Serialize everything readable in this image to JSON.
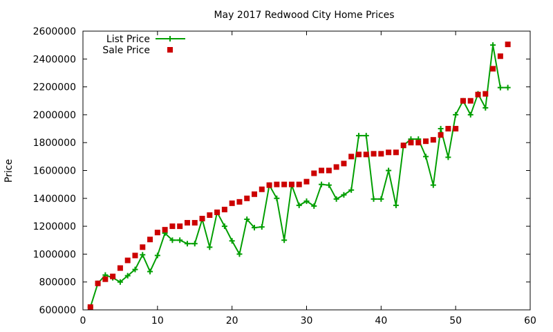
{
  "chart_data": {
    "type": "line",
    "title": "May 2017 Redwood City Home Prices",
    "xlabel": "",
    "ylabel": "Price",
    "xlim": [
      0,
      60
    ],
    "ylim": [
      600000,
      2600000
    ],
    "xticks": [
      "0",
      "10",
      "20",
      "30",
      "40",
      "50",
      "60"
    ],
    "yticks": [
      "600000",
      "800000",
      "1000000",
      "1200000",
      "1400000",
      "1600000",
      "1800000",
      "2000000",
      "2200000",
      "2400000",
      "2600000"
    ],
    "grid": false,
    "legend_position": "top-left",
    "series": [
      {
        "name": "List Price",
        "style": "line-points",
        "color": "#009e00",
        "x": [
          1,
          2,
          3,
          4,
          5,
          6,
          7,
          8,
          9,
          10,
          11,
          12,
          13,
          14,
          15,
          16,
          17,
          18,
          19,
          20,
          21,
          22,
          23,
          24,
          25,
          26,
          27,
          28,
          29,
          30,
          31,
          32,
          33,
          34,
          35,
          36,
          37,
          38,
          39,
          40,
          41,
          42,
          43,
          44,
          45,
          46,
          47,
          48,
          49,
          50,
          51,
          52,
          53,
          54,
          55,
          56,
          57
        ],
        "y": [
          620000,
          790000,
          850000,
          830000,
          800000,
          845000,
          890000,
          995000,
          875000,
          990000,
          1150000,
          1100000,
          1100000,
          1075000,
          1075000,
          1250000,
          1050000,
          1300000,
          1200000,
          1095000,
          1000000,
          1250000,
          1190000,
          1195000,
          1495000,
          1400000,
          1100000,
          1495000,
          1350000,
          1380000,
          1345000,
          1500000,
          1495000,
          1395000,
          1425000,
          1460000,
          1850000,
          1850000,
          1395000,
          1395000,
          1600000,
          1350000,
          1780000,
          1825000,
          1825000,
          1700000,
          1495000,
          1900000,
          1695000,
          2000000,
          2100000,
          2000000,
          2150000,
          2050000,
          2500000,
          2195000,
          2195000
        ]
      },
      {
        "name": "Sale Price",
        "style": "points",
        "color": "#cc0000",
        "x": [
          1,
          2,
          3,
          4,
          5,
          6,
          7,
          8,
          9,
          10,
          11,
          12,
          13,
          14,
          15,
          16,
          17,
          18,
          19,
          20,
          21,
          22,
          23,
          24,
          25,
          26,
          27,
          28,
          29,
          30,
          31,
          32,
          33,
          34,
          35,
          36,
          37,
          38,
          39,
          40,
          41,
          42,
          43,
          44,
          45,
          46,
          47,
          48,
          49,
          50,
          51,
          52,
          53,
          54,
          55,
          56,
          57
        ],
        "y": [
          620000,
          790000,
          820000,
          840000,
          900000,
          955000,
          990000,
          1050000,
          1105000,
          1155000,
          1175000,
          1200000,
          1200000,
          1225000,
          1225000,
          1255000,
          1280000,
          1300000,
          1320000,
          1365000,
          1375000,
          1400000,
          1430000,
          1465000,
          1495000,
          1500000,
          1500000,
          1500000,
          1500000,
          1520000,
          1580000,
          1600000,
          1600000,
          1625000,
          1650000,
          1700000,
          1715000,
          1715000,
          1720000,
          1720000,
          1730000,
          1730000,
          1780000,
          1800000,
          1800000,
          1810000,
          1820000,
          1855000,
          1900000,
          1900000,
          2100000,
          2100000,
          2145000,
          2150000,
          2330000,
          2420000,
          2505000
        ]
      }
    ]
  }
}
